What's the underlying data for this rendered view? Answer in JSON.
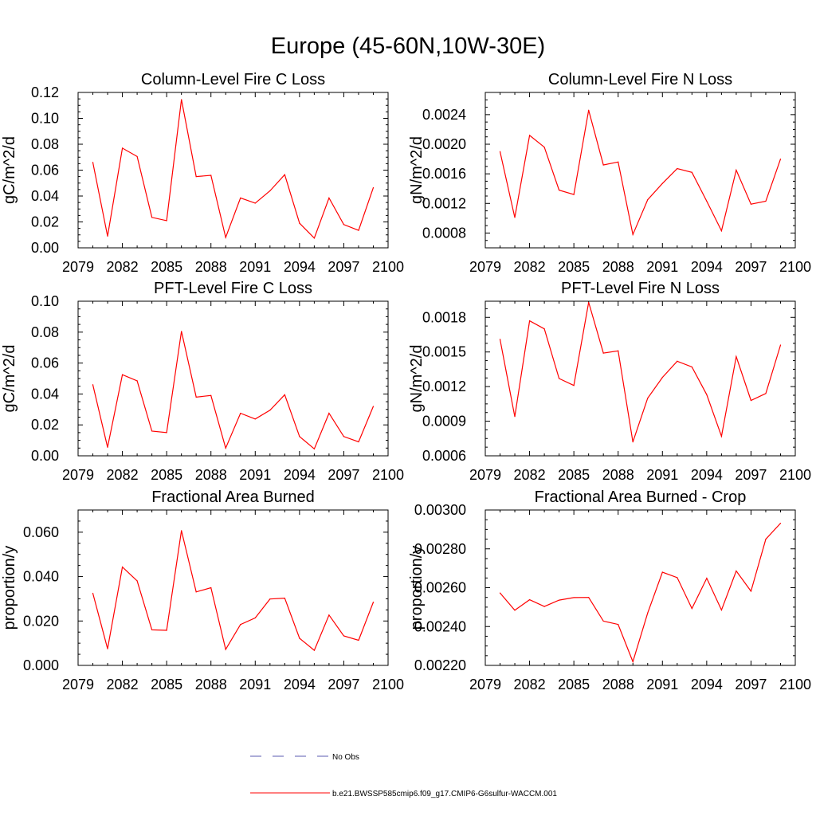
{
  "title": "Europe (45-60N,10W-30E)",
  "colors": {
    "series": "#ff0000",
    "obs": "#5b5bb0",
    "axis": "#000000"
  },
  "legend": {
    "items": [
      {
        "label": "No Obs",
        "style": "dashed",
        "color": "#5b5bb0"
      },
      {
        "label": "b.e21.BWSSP585cmip6.f09_g17.CMIP6-G6sulfur-WACCM.001",
        "style": "solid",
        "color": "#ff0000"
      }
    ]
  },
  "chart_data": [
    {
      "type": "line",
      "title": "Column-Level Fire C Loss",
      "ylabel": "gC/m^2/d",
      "xlim": [
        2079,
        2100
      ],
      "xticks": [
        "2079",
        "2082",
        "2085",
        "2088",
        "2091",
        "2094",
        "2097",
        "2100"
      ],
      "ylim": [
        0,
        0.12
      ],
      "yticks": [
        "0.00",
        "0.02",
        "0.04",
        "0.06",
        "0.08",
        "0.10",
        "0.12"
      ],
      "x": [
        2080,
        2081,
        2082,
        2083,
        2084,
        2085,
        2086,
        2087,
        2088,
        2089,
        2090,
        2091,
        2092,
        2093,
        2094,
        2095,
        2096,
        2097,
        2098,
        2099
      ],
      "series": [
        {
          "values": [
            0.066,
            0.009,
            0.077,
            0.0705,
            0.0235,
            0.021,
            0.1145,
            0.055,
            0.056,
            0.008,
            0.0385,
            0.0345,
            0.044,
            0.0565,
            0.019,
            0.0075,
            0.0385,
            0.018,
            0.0135,
            0.0465
          ]
        }
      ]
    },
    {
      "type": "line",
      "title": "Column-Level Fire N Loss",
      "ylabel": "gN/m^2/d",
      "xlim": [
        2079,
        2100
      ],
      "xticks": [
        "2079",
        "2082",
        "2085",
        "2088",
        "2091",
        "2094",
        "2097",
        "2100"
      ],
      "ylim": [
        0.0006,
        0.0027
      ],
      "yticks": [
        "0.0008",
        "0.0012",
        "0.0016",
        "0.0020",
        "0.0024"
      ],
      "x": [
        2080,
        2081,
        2082,
        2083,
        2084,
        2085,
        2086,
        2087,
        2088,
        2089,
        2090,
        2091,
        2092,
        2093,
        2094,
        2095,
        2096,
        2097,
        2098,
        2099
      ],
      "series": [
        {
          "values": [
            0.0019,
            0.00101,
            0.00212,
            0.00196,
            0.00138,
            0.00132,
            0.00246,
            0.00172,
            0.00176,
            0.00078,
            0.00125,
            0.00147,
            0.00167,
            0.00162,
            0.00123,
            0.00083,
            0.00165,
            0.00119,
            0.00123,
            0.0018
          ]
        }
      ]
    },
    {
      "type": "line",
      "title": "PFT-Level Fire C Loss",
      "ylabel": "gC/m^2/d",
      "xlim": [
        2079,
        2100
      ],
      "xticks": [
        "2079",
        "2082",
        "2085",
        "2088",
        "2091",
        "2094",
        "2097",
        "2100"
      ],
      "ylim": [
        0,
        0.1
      ],
      "yticks": [
        "0.00",
        "0.02",
        "0.04",
        "0.06",
        "0.08",
        "0.10"
      ],
      "x": [
        2080,
        2081,
        2082,
        2083,
        2084,
        2085,
        2086,
        2087,
        2088,
        2089,
        2090,
        2091,
        2092,
        2093,
        2094,
        2095,
        2096,
        2097,
        2098,
        2099
      ],
      "series": [
        {
          "values": [
            0.046,
            0.0055,
            0.0525,
            0.0485,
            0.016,
            0.015,
            0.0805,
            0.038,
            0.039,
            0.005,
            0.0275,
            0.0238,
            0.0295,
            0.0395,
            0.0125,
            0.0045,
            0.0275,
            0.0125,
            0.009,
            0.032
          ]
        }
      ]
    },
    {
      "type": "line",
      "title": "PFT-Level Fire N Loss",
      "ylabel": "gN/m^2/d",
      "xlim": [
        2079,
        2100
      ],
      "xticks": [
        "2079",
        "2082",
        "2085",
        "2088",
        "2091",
        "2094",
        "2097",
        "2100"
      ],
      "ylim": [
        0.0006,
        0.00194
      ],
      "yticks": [
        "0.0006",
        "0.0009",
        "0.0012",
        "0.0015",
        "0.0018"
      ],
      "x": [
        2080,
        2081,
        2082,
        2083,
        2084,
        2085,
        2086,
        2087,
        2088,
        2089,
        2090,
        2091,
        2092,
        2093,
        2094,
        2095,
        2096,
        2097,
        2098,
        2099
      ],
      "series": [
        {
          "values": [
            0.00161,
            0.00094,
            0.00177,
            0.0017,
            0.00127,
            0.00121,
            0.00193,
            0.00149,
            0.00151,
            0.00072,
            0.0011,
            0.00128,
            0.00142,
            0.00137,
            0.00113,
            0.00077,
            0.00146,
            0.00108,
            0.00114,
            0.00156
          ]
        }
      ]
    },
    {
      "type": "line",
      "title": "Fractional Area Burned",
      "ylabel": "proportion/y",
      "xlim": [
        2079,
        2100
      ],
      "xticks": [
        "2079",
        "2082",
        "2085",
        "2088",
        "2091",
        "2094",
        "2097",
        "2100"
      ],
      "ylim": [
        0,
        0.07
      ],
      "yticks": [
        "0.000",
        "0.020",
        "0.040",
        "0.060"
      ],
      "x": [
        2080,
        2081,
        2082,
        2083,
        2084,
        2085,
        2086,
        2087,
        2088,
        2089,
        2090,
        2091,
        2092,
        2093,
        2094,
        2095,
        2096,
        2097,
        2098,
        2099
      ],
      "series": [
        {
          "values": [
            0.0325,
            0.0075,
            0.0443,
            0.0381,
            0.016,
            0.0158,
            0.0607,
            0.0331,
            0.035,
            0.0072,
            0.0184,
            0.0214,
            0.0299,
            0.0303,
            0.0122,
            0.0068,
            0.0227,
            0.0133,
            0.0113,
            0.0285
          ]
        }
      ]
    },
    {
      "type": "line",
      "title": "Fractional Area Burned - Crop",
      "ylabel": "proportion/y",
      "xlim": [
        2079,
        2100
      ],
      "xticks": [
        "2079",
        "2082",
        "2085",
        "2088",
        "2091",
        "2094",
        "2097",
        "2100"
      ],
      "ylim": [
        0.0022,
        0.003
      ],
      "yticks": [
        "0.00220",
        "0.00240",
        "0.00260",
        "0.00280",
        "0.00300"
      ],
      "x": [
        2080,
        2081,
        2082,
        2083,
        2084,
        2085,
        2086,
        2087,
        2088,
        2089,
        2090,
        2091,
        2092,
        2093,
        2094,
        2095,
        2096,
        2097,
        2098,
        2099
      ],
      "series": [
        {
          "values": [
            0.002573,
            0.002484,
            0.002538,
            0.002503,
            0.002536,
            0.002549,
            0.00255,
            0.002428,
            0.002411,
            0.002219,
            0.00247,
            0.00268,
            0.002652,
            0.002493,
            0.002649,
            0.002485,
            0.002686,
            0.002582,
            0.00285,
            0.002932
          ]
        }
      ]
    }
  ]
}
